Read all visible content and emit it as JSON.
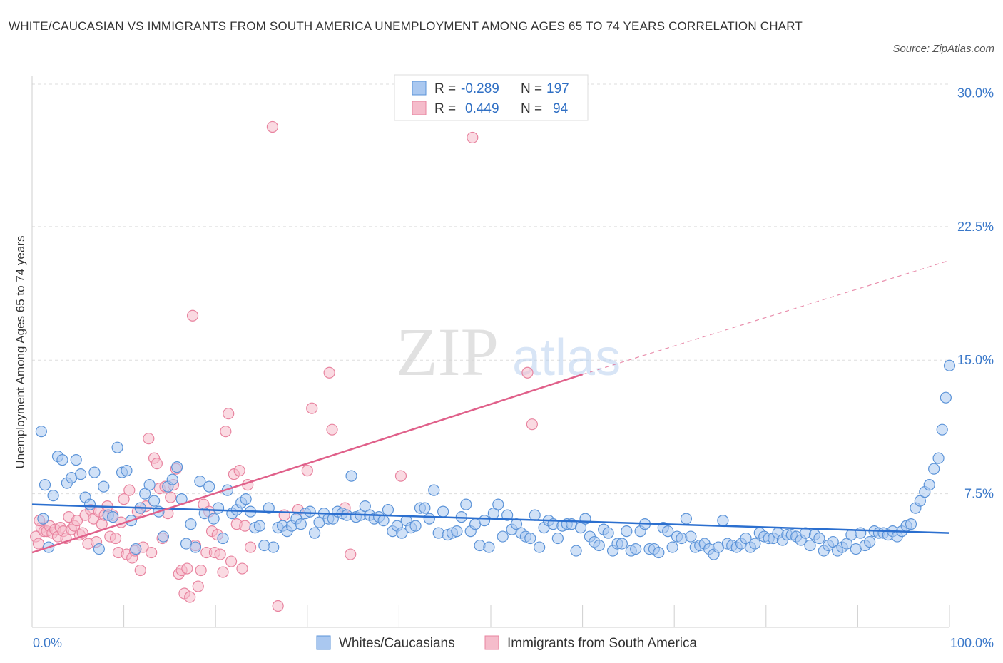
{
  "title": "WHITE/CAUCASIAN VS IMMIGRANTS FROM SOUTH AMERICA UNEMPLOYMENT AMONG AGES 65 TO 74 YEARS CORRELATION CHART",
  "source": "Source: ZipAtlas.com",
  "watermark": {
    "zip": "ZIP",
    "atlas": "atlas"
  },
  "colors": {
    "blue_fill": "#aac8f0",
    "blue_stroke": "#5b93d8",
    "blue_line": "#2b6fcf",
    "pink_fill": "#f5bccb",
    "pink_stroke": "#e8839f",
    "pink_line": "#e0608a",
    "tick_text": "#3a78c9",
    "grid": "#dddddd"
  },
  "legend": {
    "rows": [
      {
        "r_label": "R =",
        "r_value": "-0.289",
        "n_label": "N =",
        "n_value": "197"
      },
      {
        "r_label": "R =",
        "r_value": "0.449",
        "n_label": "N =",
        "n_value": "94"
      }
    ]
  },
  "chart_data": {
    "type": "scatter",
    "title": "WHITE/CAUCASIAN VS IMMIGRANTS FROM SOUTH AMERICA UNEMPLOYMENT AMONG AGES 65 TO 74 YEARS CORRELATION CHART",
    "xlabel": "",
    "ylabel": "Unemployment Among Ages 65 to 74 years",
    "xlim": [
      0,
      100
    ],
    "ylim": [
      0,
      30.5
    ],
    "x_tick_labels": [
      "0.0%",
      "100.0%"
    ],
    "y_ticks": [
      7.5,
      15.0,
      22.5,
      30.0
    ],
    "y_tick_labels": [
      "7.5%",
      "15.0%",
      "22.5%",
      "30.0%"
    ],
    "grid": "horizontal dashed",
    "legend_position": "bottom-center",
    "series": [
      {
        "name": "Whites/Caucasians",
        "R": -0.289,
        "N": 197,
        "trend": {
          "x": [
            0,
            100
          ],
          "y": [
            6.9,
            5.3
          ]
        },
        "points": [
          [
            1,
            11
          ],
          [
            1.2,
            6.1
          ],
          [
            1.4,
            8
          ],
          [
            1.8,
            4.5
          ],
          [
            2.3,
            7.4
          ],
          [
            2.8,
            9.6
          ],
          [
            3.3,
            9.4
          ],
          [
            3.8,
            8.1
          ],
          [
            4.3,
            8.4
          ],
          [
            4.8,
            9.4
          ],
          [
            5.3,
            8.6
          ],
          [
            5.8,
            7.3
          ],
          [
            6.3,
            6.9
          ],
          [
            6.8,
            8.7
          ],
          [
            7.3,
            4.4
          ],
          [
            7.8,
            7.9
          ],
          [
            8.3,
            6.3
          ],
          [
            8.8,
            6.2
          ],
          [
            9.3,
            10.1
          ],
          [
            9.8,
            8.7
          ],
          [
            10.3,
            8.8
          ],
          [
            10.8,
            6
          ],
          [
            11.3,
            4.4
          ],
          [
            11.8,
            6.7
          ],
          [
            12.3,
            7.5
          ],
          [
            12.8,
            8
          ],
          [
            13.3,
            7.1
          ],
          [
            13.8,
            6.5
          ],
          [
            14.3,
            5.1
          ],
          [
            14.8,
            7.9
          ],
          [
            15.3,
            8.3
          ],
          [
            15.8,
            9
          ],
          [
            16.3,
            7.2
          ],
          [
            16.8,
            4.7
          ],
          [
            17.3,
            5.8
          ],
          [
            17.8,
            4.5
          ],
          [
            18.3,
            8.2
          ],
          [
            18.8,
            6.4
          ],
          [
            19.3,
            7.9
          ],
          [
            19.8,
            6.1
          ],
          [
            20.3,
            6.7
          ],
          [
            20.8,
            5
          ],
          [
            21.3,
            7.7
          ],
          [
            21.8,
            6.4
          ],
          [
            22.3,
            6.6
          ],
          [
            22.8,
            7
          ],
          [
            23.3,
            7.2
          ],
          [
            23.8,
            6.5
          ],
          [
            24.3,
            5.6
          ],
          [
            24.8,
            5.7
          ],
          [
            25.3,
            4.6
          ],
          [
            25.8,
            6.7
          ],
          [
            26.3,
            4.5
          ],
          [
            26.8,
            5.6
          ],
          [
            27.3,
            5.7
          ],
          [
            27.8,
            5.4
          ],
          [
            28.3,
            5.7
          ],
          [
            28.8,
            6.1
          ],
          [
            29.3,
            5.8
          ],
          [
            29.8,
            6.4
          ],
          [
            30.3,
            6.5
          ],
          [
            30.8,
            5.3
          ],
          [
            31.3,
            5.9
          ],
          [
            31.8,
            6.4
          ],
          [
            32.3,
            6.1
          ],
          [
            32.8,
            6.1
          ],
          [
            33.3,
            6.5
          ],
          [
            33.8,
            6.4
          ],
          [
            34.3,
            6.3
          ],
          [
            34.8,
            8.5
          ],
          [
            35.3,
            6.2
          ],
          [
            35.8,
            6.3
          ],
          [
            36.3,
            6.8
          ],
          [
            36.8,
            6.3
          ],
          [
            37.3,
            6.1
          ],
          [
            37.8,
            6.2
          ],
          [
            38.3,
            6
          ],
          [
            38.8,
            6.6
          ],
          [
            39.3,
            5.4
          ],
          [
            39.8,
            5.7
          ],
          [
            40.3,
            5.3
          ],
          [
            40.8,
            6
          ],
          [
            41.3,
            5.6
          ],
          [
            41.8,
            5.7
          ],
          [
            42.3,
            6.7
          ],
          [
            42.8,
            6.7
          ],
          [
            43.3,
            6.1
          ],
          [
            43.8,
            7.7
          ],
          [
            44.3,
            5.3
          ],
          [
            44.8,
            6.5
          ],
          [
            45.3,
            5.2
          ],
          [
            45.8,
            5.3
          ],
          [
            46.3,
            5.4
          ],
          [
            46.8,
            6.2
          ],
          [
            47.3,
            6.9
          ],
          [
            47.8,
            5.4
          ],
          [
            48.3,
            5.8
          ],
          [
            48.8,
            4.6
          ],
          [
            49.3,
            6
          ],
          [
            49.8,
            4.5
          ],
          [
            50.3,
            6.4
          ],
          [
            50.8,
            6.9
          ],
          [
            51.3,
            5.1
          ],
          [
            51.8,
            6.3
          ],
          [
            52.3,
            5.5
          ],
          [
            52.8,
            5.8
          ],
          [
            53.3,
            5.3
          ],
          [
            53.8,
            5.1
          ],
          [
            54.3,
            5
          ],
          [
            54.8,
            6.3
          ],
          [
            55.3,
            4.5
          ],
          [
            55.8,
            5.6
          ],
          [
            56.3,
            6
          ],
          [
            56.8,
            5.8
          ],
          [
            57.3,
            5
          ],
          [
            57.8,
            5.7
          ],
          [
            58.3,
            5.8
          ],
          [
            58.8,
            5.8
          ],
          [
            59.3,
            4.3
          ],
          [
            59.8,
            5.6
          ],
          [
            60.3,
            6.1
          ],
          [
            60.8,
            5.1
          ],
          [
            61.3,
            4.8
          ],
          [
            61.8,
            4.6
          ],
          [
            62.3,
            5.5
          ],
          [
            62.8,
            5.3
          ],
          [
            63.3,
            4.3
          ],
          [
            63.8,
            4.7
          ],
          [
            64.3,
            4.7
          ],
          [
            64.8,
            5.4
          ],
          [
            65.3,
            4.3
          ],
          [
            65.8,
            4.4
          ],
          [
            66.3,
            5.4
          ],
          [
            66.8,
            5.8
          ],
          [
            67.3,
            4.4
          ],
          [
            67.8,
            4.4
          ],
          [
            68.3,
            4.2
          ],
          [
            68.8,
            5.6
          ],
          [
            69.3,
            5.4
          ],
          [
            69.8,
            4.5
          ],
          [
            70.3,
            5.1
          ],
          [
            70.8,
            5
          ],
          [
            71.3,
            6.1
          ],
          [
            71.8,
            5.1
          ],
          [
            72.3,
            4.5
          ],
          [
            72.8,
            4.6
          ],
          [
            73.3,
            4.7
          ],
          [
            73.8,
            4.4
          ],
          [
            74.3,
            4.1
          ],
          [
            74.8,
            4.5
          ],
          [
            75.3,
            6
          ],
          [
            75.8,
            4.7
          ],
          [
            76.3,
            4.6
          ],
          [
            76.8,
            4.5
          ],
          [
            77.3,
            4.7
          ],
          [
            77.8,
            5
          ],
          [
            78.3,
            4.5
          ],
          [
            78.8,
            4.7
          ],
          [
            79.3,
            5.3
          ],
          [
            79.8,
            5.1
          ],
          [
            80.3,
            5
          ],
          [
            80.8,
            5
          ],
          [
            81.3,
            5.3
          ],
          [
            81.8,
            4.9
          ],
          [
            82.3,
            5.2
          ],
          [
            82.8,
            5.2
          ],
          [
            83.3,
            5.1
          ],
          [
            83.8,
            4.9
          ],
          [
            84.3,
            5.3
          ],
          [
            84.8,
            4.6
          ],
          [
            85.3,
            5.2
          ],
          [
            85.8,
            5
          ],
          [
            86.3,
            4.3
          ],
          [
            86.8,
            4.6
          ],
          [
            87.3,
            4.8
          ],
          [
            87.8,
            4.3
          ],
          [
            88.3,
            4.5
          ],
          [
            88.8,
            4.7
          ],
          [
            89.3,
            5.2
          ],
          [
            89.8,
            4.4
          ],
          [
            90.3,
            5.3
          ],
          [
            90.8,
            4.6
          ],
          [
            91.3,
            4.8
          ],
          [
            91.8,
            5.4
          ],
          [
            92.3,
            5.3
          ],
          [
            92.8,
            5.3
          ],
          [
            93.3,
            5.2
          ],
          [
            93.8,
            5.4
          ],
          [
            94.3,
            5.1
          ],
          [
            94.8,
            5.4
          ],
          [
            95.3,
            5.7
          ],
          [
            95.8,
            5.8
          ],
          [
            96.3,
            6.7
          ],
          [
            96.8,
            7.1
          ],
          [
            97.3,
            7.6
          ],
          [
            97.8,
            8
          ],
          [
            98.3,
            8.9
          ],
          [
            98.8,
            9.5
          ],
          [
            99.2,
            11.1
          ],
          [
            99.6,
            12.9
          ],
          [
            100,
            14.7
          ]
        ]
      },
      {
        "name": "Immigrants from South America",
        "R": 0.449,
        "N": 94,
        "trend": {
          "x": [
            0,
            60
          ],
          "y": [
            4.2,
            14.2
          ]
        },
        "trend_extension": {
          "x": [
            60,
            100
          ],
          "y": [
            14.2,
            20.6
          ]
        },
        "points": [
          [
            0.4,
            5.1
          ],
          [
            0.7,
            4.7
          ],
          [
            1,
            5.6
          ],
          [
            1.3,
            5.4
          ],
          [
            1.6,
            5.4
          ],
          [
            1.9,
            5.7
          ],
          [
            2.2,
            5.3
          ],
          [
            2.5,
            5.5
          ],
          [
            2.8,
            5.1
          ],
          [
            3.1,
            5.6
          ],
          [
            3.4,
            5.4
          ],
          [
            3.7,
            5
          ],
          [
            4,
            6.2
          ],
          [
            4.3,
            5.5
          ],
          [
            4.6,
            5.7
          ],
          [
            4.9,
            6
          ],
          [
            5.2,
            5.2
          ],
          [
            5.5,
            5.3
          ],
          [
            5.8,
            6.3
          ],
          [
            6.1,
            4.7
          ],
          [
            6.4,
            6.6
          ],
          [
            6.7,
            6.1
          ],
          [
            7,
            4.8
          ],
          [
            7.3,
            6.5
          ],
          [
            7.6,
            5.8
          ],
          [
            7.9,
            6.3
          ],
          [
            8.2,
            6.8
          ],
          [
            8.5,
            5.1
          ],
          [
            8.8,
            6.3
          ],
          [
            9.1,
            5
          ],
          [
            9.4,
            4.2
          ],
          [
            9.7,
            5.9
          ],
          [
            10,
            7.2
          ],
          [
            10.3,
            4.1
          ],
          [
            10.6,
            7.7
          ],
          [
            10.9,
            3.9
          ],
          [
            11.2,
            4.3
          ],
          [
            11.5,
            6.5
          ],
          [
            11.8,
            3.2
          ],
          [
            12.1,
            4.5
          ],
          [
            12.4,
            6.8
          ],
          [
            12.7,
            10.6
          ],
          [
            13,
            4.2
          ],
          [
            13.3,
            9.5
          ],
          [
            13.6,
            9.2
          ],
          [
            13.9,
            7.8
          ],
          [
            14.2,
            5
          ],
          [
            14.5,
            7.9
          ],
          [
            14.8,
            6.4
          ],
          [
            15.1,
            7.3
          ],
          [
            15.4,
            8
          ],
          [
            15.7,
            8.9
          ],
          [
            16,
            3
          ],
          [
            16.3,
            3.2
          ],
          [
            16.6,
            1.9
          ],
          [
            16.9,
            3.3
          ],
          [
            17.2,
            1.7
          ],
          [
            17.5,
            17.5
          ],
          [
            17.8,
            4.6
          ],
          [
            18.1,
            2.3
          ],
          [
            18.4,
            3.2
          ],
          [
            18.7,
            6.9
          ],
          [
            19,
            4.2
          ],
          [
            19.3,
            6.5
          ],
          [
            19.6,
            5.4
          ],
          [
            19.9,
            4.2
          ],
          [
            20.2,
            5.2
          ],
          [
            20.5,
            4.1
          ],
          [
            20.8,
            3.1
          ],
          [
            21.1,
            11
          ],
          [
            21.4,
            12
          ],
          [
            21.7,
            3.7
          ],
          [
            22,
            8.6
          ],
          [
            22.3,
            5.8
          ],
          [
            22.6,
            8.8
          ],
          [
            22.9,
            3.3
          ],
          [
            23.2,
            5.7
          ],
          [
            23.5,
            8
          ],
          [
            23.8,
            4.5
          ],
          [
            26.2,
            28.1
          ],
          [
            26.8,
            1.2
          ],
          [
            27.5,
            6.3
          ],
          [
            29,
            6.6
          ],
          [
            30,
            8.8
          ],
          [
            30.5,
            12.3
          ],
          [
            32.4,
            14.3
          ],
          [
            32.7,
            11.1
          ],
          [
            34.1,
            6.7
          ],
          [
            34.7,
            4.1
          ],
          [
            40.2,
            8.5
          ],
          [
            48,
            27.5
          ],
          [
            54,
            14.3
          ],
          [
            54.5,
            11.4
          ],
          [
            0.8,
            6
          ]
        ]
      }
    ]
  }
}
